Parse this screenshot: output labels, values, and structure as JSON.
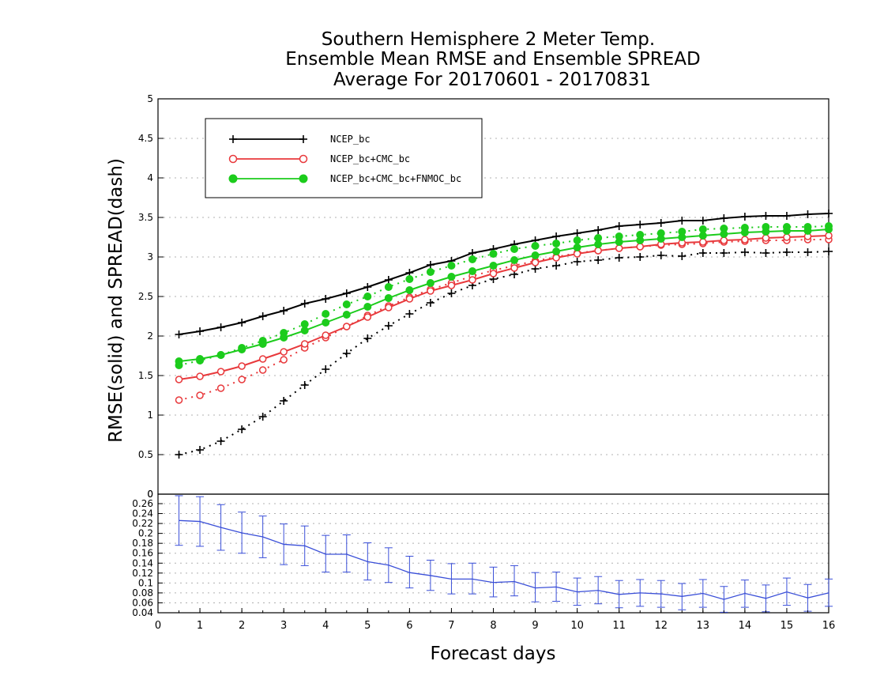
{
  "chart_data": {
    "type": "line",
    "title_lines": [
      "Southern Hemisphere 2 Meter Temp.",
      "Ensemble Mean RMSE and Ensemble SPREAD",
      "Average For 20170601 - 20170831"
    ],
    "xlabel": "Forecast days",
    "ylabel": "RMSE(solid) and SPREAD(dash)",
    "xlim": [
      0,
      16
    ],
    "x_ticks": [
      "0",
      "1",
      "2",
      "3",
      "4",
      "5",
      "6",
      "7",
      "8",
      "9",
      "10",
      "11",
      "12",
      "13",
      "14",
      "15",
      "16"
    ],
    "ylim": [
      0,
      5
    ],
    "y_ticks": [
      "0",
      "0.5",
      "1",
      "1.5",
      "2",
      "2.5",
      "3",
      "3.5",
      "4",
      "4.5",
      "5"
    ],
    "grid": "dotted horizontal",
    "legend_position": "top-left",
    "x": [
      0.5,
      1,
      1.5,
      2,
      2.5,
      3,
      3.5,
      4,
      4.5,
      5,
      5.5,
      6,
      6.5,
      7,
      7.5,
      8,
      8.5,
      9,
      9.5,
      10,
      10.5,
      11,
      11.5,
      12,
      12.5,
      13,
      13.5,
      14,
      14.5,
      15,
      15.5,
      16
    ],
    "series": [
      {
        "name": "NCEP_bc",
        "color": "#000000",
        "marker": "plus",
        "rmse": [
          2.02,
          2.06,
          2.11,
          2.17,
          2.25,
          2.32,
          2.41,
          2.47,
          2.54,
          2.62,
          2.71,
          2.8,
          2.9,
          2.95,
          3.05,
          3.1,
          3.16,
          3.21,
          3.26,
          3.3,
          3.34,
          3.39,
          3.41,
          3.43,
          3.46,
          3.46,
          3.49,
          3.51,
          3.52,
          3.52,
          3.54,
          3.55
        ],
        "spread": [
          0.5,
          0.56,
          0.67,
          0.82,
          0.98,
          1.18,
          1.38,
          1.58,
          1.78,
          1.97,
          2.13,
          2.28,
          2.42,
          2.54,
          2.64,
          2.72,
          2.78,
          2.85,
          2.89,
          2.94,
          2.96,
          2.99,
          3.0,
          3.02,
          3.01,
          3.05,
          3.05,
          3.06,
          3.05,
          3.06,
          3.06,
          3.07
        ]
      },
      {
        "name": "NCEP_bc+CMC_bc",
        "color": "#e8393c",
        "marker": "open-circle",
        "rmse": [
          1.45,
          1.49,
          1.55,
          1.62,
          1.71,
          1.8,
          1.9,
          2.01,
          2.12,
          2.24,
          2.36,
          2.47,
          2.57,
          2.64,
          2.71,
          2.79,
          2.86,
          2.93,
          2.99,
          3.04,
          3.08,
          3.11,
          3.13,
          3.16,
          3.18,
          3.19,
          3.21,
          3.22,
          3.24,
          3.25,
          3.26,
          3.27
        ],
        "spread": [
          1.19,
          1.25,
          1.34,
          1.45,
          1.57,
          1.7,
          1.85,
          1.98,
          2.12,
          2.26,
          2.38,
          2.49,
          2.59,
          2.67,
          2.76,
          2.83,
          2.89,
          2.95,
          3.0,
          3.05,
          3.08,
          3.11,
          3.13,
          3.15,
          3.16,
          3.17,
          3.19,
          3.2,
          3.21,
          3.21,
          3.22,
          3.22
        ]
      },
      {
        "name": "NCEP_bc+CMC_bc+FNMOC_bc",
        "color": "#1ccc1c",
        "marker": "filled-circle",
        "rmse": [
          1.68,
          1.71,
          1.76,
          1.83,
          1.9,
          1.98,
          2.07,
          2.17,
          2.27,
          2.37,
          2.48,
          2.58,
          2.67,
          2.75,
          2.82,
          2.89,
          2.96,
          3.02,
          3.07,
          3.12,
          3.16,
          3.19,
          3.21,
          3.23,
          3.25,
          3.27,
          3.29,
          3.31,
          3.32,
          3.33,
          3.33,
          3.35
        ],
        "spread": [
          1.63,
          1.69,
          1.76,
          1.85,
          1.94,
          2.04,
          2.15,
          2.28,
          2.4,
          2.5,
          2.62,
          2.72,
          2.81,
          2.89,
          2.97,
          3.04,
          3.1,
          3.14,
          3.17,
          3.21,
          3.24,
          3.26,
          3.28,
          3.3,
          3.32,
          3.35,
          3.36,
          3.37,
          3.38,
          3.38,
          3.38,
          3.39
        ]
      }
    ],
    "difference_panel": {
      "ylim": [
        0.04,
        0.26
      ],
      "y_ticks": [
        "0",
        "0.26",
        "0.24",
        "0.22",
        "0.2",
        "0.18",
        "0.16",
        "0.14",
        "0.12",
        "0.1",
        "0.08",
        "0.06",
        "0.04"
      ],
      "color": "#3a4fd8",
      "values": [
        0.226,
        0.224,
        0.212,
        0.201,
        0.193,
        0.178,
        0.175,
        0.158,
        0.158,
        0.143,
        0.136,
        0.121,
        0.115,
        0.108,
        0.108,
        0.101,
        0.103,
        0.09,
        0.092,
        0.082,
        0.085,
        0.077,
        0.08,
        0.078,
        0.073,
        0.079,
        0.067,
        0.079,
        0.069,
        0.082,
        0.07,
        0.08
      ],
      "error_low": [
        0.176,
        0.174,
        0.166,
        0.16,
        0.151,
        0.137,
        0.135,
        0.122,
        0.122,
        0.106,
        0.101,
        0.09,
        0.085,
        0.078,
        0.078,
        0.072,
        0.074,
        0.062,
        0.063,
        0.055,
        0.058,
        0.05,
        0.053,
        0.051,
        0.046,
        0.051,
        0.041,
        0.051,
        0.042,
        0.055,
        0.043,
        0.053
      ],
      "error_high": [
        0.276,
        0.274,
        0.258,
        0.243,
        0.235,
        0.219,
        0.215,
        0.196,
        0.197,
        0.181,
        0.171,
        0.154,
        0.146,
        0.139,
        0.14,
        0.132,
        0.135,
        0.121,
        0.122,
        0.11,
        0.113,
        0.105,
        0.107,
        0.105,
        0.099,
        0.107,
        0.093,
        0.106,
        0.096,
        0.11,
        0.097,
        0.108
      ]
    }
  }
}
